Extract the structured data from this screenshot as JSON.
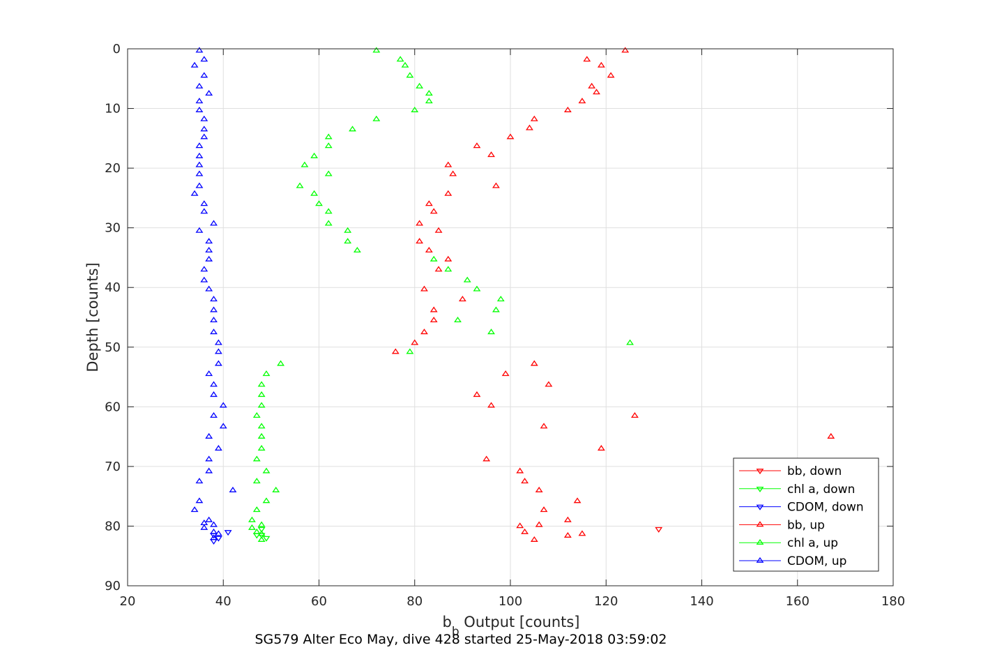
{
  "chart_data": {
    "type": "scatter",
    "title": "",
    "caption": "SG579 Alter Eco May, dive 428 started 25-May-2018 03:59:02",
    "xlabel_main": "b",
    "xlabel_sub": "b",
    "xlabel_rest": " Output [counts]",
    "ylabel": "Depth [counts]",
    "xlim": [
      20,
      180
    ],
    "ylim": [
      0,
      90
    ],
    "y_reversed": true,
    "grid": true,
    "x_ticks": [
      "20",
      "40",
      "60",
      "80",
      "100",
      "120",
      "140",
      "160",
      "180"
    ],
    "y_ticks": [
      "0",
      "10",
      "20",
      "30",
      "40",
      "50",
      "60",
      "70",
      "80",
      "90"
    ],
    "legend_placement": "bottom-right",
    "series": [
      {
        "name": "bb, down",
        "color": "#ff0000",
        "marker": "triangle-down",
        "points": [
          [
            131,
            80.5
          ]
        ]
      },
      {
        "name": "chl a, down",
        "color": "#00ff00",
        "marker": "triangle-down",
        "points": [
          [
            48,
            80.5
          ],
          [
            47,
            81.5
          ],
          [
            48,
            81.5
          ],
          [
            49,
            82
          ]
        ]
      },
      {
        "name": "CDOM, down",
        "color": "#0000ff",
        "marker": "triangle-down",
        "points": [
          [
            41,
            81
          ],
          [
            38,
            81.5
          ],
          [
            39,
            82
          ],
          [
            38,
            82.5
          ]
        ]
      },
      {
        "name": "bb, up",
        "color": "#ff0000",
        "marker": "triangle-up",
        "points": [
          [
            124,
            0.3
          ],
          [
            116,
            1.8
          ],
          [
            119,
            2.8
          ],
          [
            121,
            4.5
          ],
          [
            117,
            6.3
          ],
          [
            118,
            7.3
          ],
          [
            115,
            8.8
          ],
          [
            112,
            10.3
          ],
          [
            105,
            11.8
          ],
          [
            104,
            13.3
          ],
          [
            100,
            14.8
          ],
          [
            93,
            16.3
          ],
          [
            96,
            17.8
          ],
          [
            87,
            19.5
          ],
          [
            88,
            21
          ],
          [
            97,
            23
          ],
          [
            87,
            24.3
          ],
          [
            83,
            26
          ],
          [
            84,
            27.3
          ],
          [
            81,
            29.3
          ],
          [
            85,
            30.5
          ],
          [
            81,
            32.3
          ],
          [
            83,
            33.8
          ],
          [
            87,
            35.3
          ],
          [
            85,
            37
          ],
          [
            82,
            40.3
          ],
          [
            90,
            42
          ],
          [
            84,
            43.8
          ],
          [
            84,
            45.5
          ],
          [
            82,
            47.5
          ],
          [
            80,
            49.3
          ],
          [
            76,
            50.8
          ],
          [
            105,
            52.8
          ],
          [
            99,
            54.5
          ],
          [
            108,
            56.3
          ],
          [
            93,
            58
          ],
          [
            96,
            59.8
          ],
          [
            126,
            61.5
          ],
          [
            107,
            63.3
          ],
          [
            167,
            65
          ],
          [
            119,
            67
          ],
          [
            95,
            68.8
          ],
          [
            102,
            70.8
          ],
          [
            103,
            72.5
          ],
          [
            106,
            74
          ],
          [
            114,
            75.8
          ],
          [
            107,
            77.3
          ],
          [
            112,
            79
          ],
          [
            102,
            80
          ],
          [
            103,
            81
          ],
          [
            106,
            79.8
          ],
          [
            115,
            81.3
          ],
          [
            112,
            81.6
          ],
          [
            105,
            82.3
          ]
        ]
      },
      {
        "name": "chl a, up",
        "color": "#00ff00",
        "marker": "triangle-up",
        "points": [
          [
            72,
            0.3
          ],
          [
            77,
            1.8
          ],
          [
            78,
            2.8
          ],
          [
            79,
            4.5
          ],
          [
            81,
            6.3
          ],
          [
            83,
            7.5
          ],
          [
            83,
            8.8
          ],
          [
            80,
            10.3
          ],
          [
            72,
            11.8
          ],
          [
            67,
            13.5
          ],
          [
            62,
            14.8
          ],
          [
            62,
            16.3
          ],
          [
            59,
            18
          ],
          [
            57,
            19.5
          ],
          [
            62,
            21
          ],
          [
            56,
            23
          ],
          [
            59,
            24.3
          ],
          [
            60,
            26
          ],
          [
            62,
            27.3
          ],
          [
            62,
            29.3
          ],
          [
            66,
            30.5
          ],
          [
            66,
            32.3
          ],
          [
            68,
            33.8
          ],
          [
            84,
            35.3
          ],
          [
            87,
            37
          ],
          [
            91,
            38.8
          ],
          [
            93,
            40.3
          ],
          [
            98,
            42
          ],
          [
            97,
            43.8
          ],
          [
            89,
            45.5
          ],
          [
            96,
            47.5
          ],
          [
            125,
            49.3
          ],
          [
            79,
            50.8
          ],
          [
            52,
            52.8
          ],
          [
            49,
            54.5
          ],
          [
            48,
            56.3
          ],
          [
            48,
            58
          ],
          [
            48,
            59.8
          ],
          [
            47,
            61.5
          ],
          [
            48,
            63.3
          ],
          [
            48,
            65
          ],
          [
            48,
            67
          ],
          [
            47,
            68.8
          ],
          [
            49,
            70.8
          ],
          [
            47,
            72.5
          ],
          [
            51,
            74
          ],
          [
            49,
            75.8
          ],
          [
            47,
            77.3
          ],
          [
            46,
            79
          ],
          [
            48,
            79.8
          ],
          [
            46,
            80.3
          ],
          [
            47,
            81
          ],
          [
            48,
            81.3
          ],
          [
            48,
            82.3
          ]
        ]
      },
      {
        "name": "CDOM, up",
        "color": "#0000ff",
        "marker": "triangle-up",
        "points": [
          [
            35,
            0.3
          ],
          [
            36,
            1.8
          ],
          [
            34,
            2.8
          ],
          [
            36,
            4.5
          ],
          [
            35,
            6.3
          ],
          [
            37,
            7.5
          ],
          [
            35,
            8.8
          ],
          [
            35,
            10.3
          ],
          [
            36,
            11.8
          ],
          [
            36,
            13.5
          ],
          [
            36,
            14.8
          ],
          [
            35,
            16.3
          ],
          [
            35,
            18
          ],
          [
            35,
            19.5
          ],
          [
            35,
            21
          ],
          [
            35,
            23
          ],
          [
            34,
            24.3
          ],
          [
            36,
            26
          ],
          [
            36,
            27.3
          ],
          [
            38,
            29.3
          ],
          [
            35,
            30.5
          ],
          [
            37,
            32.3
          ],
          [
            37,
            33.8
          ],
          [
            37,
            35.3
          ],
          [
            36,
            37
          ],
          [
            36,
            38.8
          ],
          [
            37,
            40.3
          ],
          [
            38,
            42
          ],
          [
            38,
            43.8
          ],
          [
            38,
            45.5
          ],
          [
            38,
            47.5
          ],
          [
            39,
            49.3
          ],
          [
            39,
            50.8
          ],
          [
            39,
            52.8
          ],
          [
            37,
            54.5
          ],
          [
            38,
            56.3
          ],
          [
            38,
            58
          ],
          [
            40,
            59.8
          ],
          [
            38,
            61.5
          ],
          [
            40,
            63.3
          ],
          [
            37,
            65
          ],
          [
            39,
            67
          ],
          [
            37,
            68.8
          ],
          [
            37,
            70.8
          ],
          [
            35,
            72.5
          ],
          [
            42,
            74
          ],
          [
            35,
            75.8
          ],
          [
            34,
            77.3
          ],
          [
            37,
            79
          ],
          [
            36,
            79.5
          ],
          [
            38,
            79.8
          ],
          [
            36,
            80.3
          ],
          [
            38,
            81
          ],
          [
            39,
            81.3
          ],
          [
            38,
            82
          ]
        ]
      }
    ]
  }
}
